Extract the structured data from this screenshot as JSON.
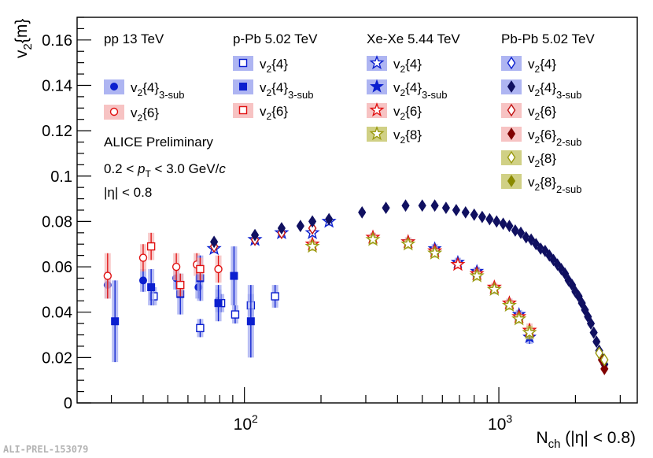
{
  "figure_id": "ALI-PREL-153079",
  "chart_data": {
    "type": "scatter",
    "title": "",
    "xlabel": {
      "main": "N",
      "sub": "ch",
      "rest": " (|η| < 0.8)"
    },
    "ylabel": {
      "main": "v",
      "sub": "2",
      "rest": "{m}"
    },
    "xscale": "log",
    "xlim": [
      22,
      3500
    ],
    "ylim": [
      0,
      0.17
    ],
    "yticks": [
      "0",
      "0.02",
      "0.04",
      "0.06",
      "0.08",
      "0.1",
      "0.12",
      "0.14",
      "0.16"
    ],
    "xticks": [
      {
        "base": "10",
        "exp": "2",
        "value": 100
      },
      {
        "base": "10",
        "exp": "3",
        "value": 1000
      }
    ],
    "annotations": [
      "ALICE Preliminary",
      "0.2 < p_T < 3.0 GeV/c",
      "|η| < 0.8"
    ],
    "legend_groups": [
      {
        "title": "pp 13 TeV",
        "entries": [
          {
            "name": "v2{4}",
            "sub": "3-sub",
            "marker": "circle",
            "filled": true,
            "color": "#0b1fcf",
            "band": "#a0a8f0"
          },
          {
            "name": "v2{6}",
            "sub": "",
            "marker": "circle",
            "filled": false,
            "color": "#e01010",
            "band": "#f6b8b8"
          }
        ]
      },
      {
        "title": "p-Pb 5.02 TeV",
        "entries": [
          {
            "name": "v2{4}",
            "sub": "",
            "marker": "square",
            "filled": false,
            "color": "#0b1fcf",
            "band": "#a0a8f0"
          },
          {
            "name": "v2{4}",
            "sub": "3-sub",
            "marker": "square",
            "filled": true,
            "color": "#0b1fcf",
            "band": "#a0a8f0"
          },
          {
            "name": "v2{6}",
            "sub": "",
            "marker": "square",
            "filled": false,
            "color": "#e01010",
            "band": "#f6b8b8"
          }
        ]
      },
      {
        "title": "Xe-Xe 5.44 TeV",
        "entries": [
          {
            "name": "v2{4}",
            "sub": "",
            "marker": "star",
            "filled": false,
            "color": "#0b1fcf",
            "band": "#a0a8f0"
          },
          {
            "name": "v2{4}",
            "sub": "3-sub",
            "marker": "star",
            "filled": true,
            "color": "#0b1fcf",
            "band": "#a0a8f0"
          },
          {
            "name": "v2{6}",
            "sub": "",
            "marker": "star",
            "filled": false,
            "color": "#e01010",
            "band": "#f6b8b8"
          },
          {
            "name": "v2{8}",
            "sub": "",
            "marker": "star",
            "filled": false,
            "color": "#9a9a10",
            "band": "#c8c870"
          }
        ]
      },
      {
        "title": "Pb-Pb 5.02 TeV",
        "entries": [
          {
            "name": "v2{4}",
            "sub": "",
            "marker": "diamond",
            "filled": false,
            "color": "#0b1fcf",
            "band": "#a0a8f0"
          },
          {
            "name": "v2{4}",
            "sub": "3-sub",
            "marker": "diamond",
            "filled": true,
            "color": "#101060",
            "band": "#a0a8f0"
          },
          {
            "name": "v2{6}",
            "sub": "",
            "marker": "diamond",
            "filled": false,
            "color": "#c01010",
            "band": "#f6b8b8"
          },
          {
            "name": "v2{6}",
            "sub": "2-sub",
            "marker": "diamond",
            "filled": true,
            "color": "#800000",
            "band": "#f6b8b8"
          },
          {
            "name": "v2{8}",
            "sub": "",
            "marker": "diamond",
            "filled": false,
            "color": "#9a9a10",
            "band": "#c8c870"
          },
          {
            "name": "v2{8}",
            "sub": "2-sub",
            "marker": "diamond",
            "filled": true,
            "color": "#8a8a00",
            "band": "#c8c870"
          }
        ]
      }
    ],
    "series": [
      {
        "name": "pp 13 TeV v2{4} 3-sub",
        "marker": "circle",
        "filled": true,
        "color": "#0b1fcf",
        "band": "#a0a8f0",
        "points": [
          [
            29,
            0.052,
            0.006
          ],
          [
            40,
            0.054,
            0.005
          ],
          [
            54,
            0.055,
            0.005
          ],
          [
            66,
            0.051,
            0.005
          ],
          [
            79,
            0.045,
            0.005
          ]
        ]
      },
      {
        "name": "pp 13 TeV v2{6}",
        "marker": "circle",
        "filled": false,
        "color": "#e01010",
        "band": "#f6b8b8",
        "points": [
          [
            29,
            0.056,
            0.01
          ],
          [
            40,
            0.064,
            0.006
          ],
          [
            54,
            0.06,
            0.006
          ],
          [
            65,
            0.061,
            0.005
          ],
          [
            79,
            0.059,
            0.006
          ]
        ]
      },
      {
        "name": "p-Pb 5.02 TeV v2{4}",
        "marker": "square",
        "filled": false,
        "color": "#0b1fcf",
        "band": "#a0a8f0",
        "points": [
          [
            44,
            0.047,
            0.004
          ],
          [
            67,
            0.033,
            0.004
          ],
          [
            81,
            0.044,
            0.004
          ],
          [
            92,
            0.039,
            0.004
          ],
          [
            106,
            0.043,
            0.005
          ],
          [
            132,
            0.047,
            0.005
          ]
        ]
      },
      {
        "name": "p-Pb 5.02 TeV v2{4} 3-sub",
        "marker": "square",
        "filled": true,
        "color": "#0b1fcf",
        "band": "#a0a8f0",
        "points": [
          [
            31,
            0.036,
            0.018
          ],
          [
            43,
            0.051,
            0.008
          ],
          [
            56,
            0.048,
            0.009
          ],
          [
            67,
            0.055,
            0.01
          ],
          [
            79,
            0.044,
            0.008
          ],
          [
            91,
            0.056,
            0.013
          ],
          [
            106,
            0.036,
            0.016
          ]
        ]
      },
      {
        "name": "p-Pb 5.02 TeV v2{6}",
        "marker": "square",
        "filled": false,
        "color": "#e01010",
        "band": "#f6b8b8",
        "points": [
          [
            43,
            0.069,
            0.006
          ],
          [
            56,
            0.052,
            0.005
          ],
          [
            67,
            0.059,
            0.005
          ]
        ]
      },
      {
        "name": "Xe-Xe 5.44 TeV v2{4}",
        "marker": "star",
        "filled": false,
        "color": "#0b1fcf",
        "band": "#a0a8f0",
        "points": [
          [
            76,
            0.068,
            0.002
          ],
          [
            110,
            0.072,
            0.002
          ],
          [
            140,
            0.075,
            0.002
          ],
          [
            185,
            0.075,
            0.002
          ],
          [
            215,
            0.08,
            0.002
          ]
        ]
      },
      {
        "name": "Xe-Xe 5.44 TeV v2{4} 3-sub",
        "marker": "star",
        "filled": true,
        "color": "#0b1fcf",
        "band": "#a0a8f0",
        "points": [
          [
            320,
            0.073,
            0.002
          ],
          [
            440,
            0.071,
            0.002
          ],
          [
            560,
            0.068,
            0.002
          ],
          [
            690,
            0.062,
            0.002
          ],
          [
            820,
            0.058,
            0.002
          ],
          [
            960,
            0.05,
            0.002
          ],
          [
            1100,
            0.044,
            0.002
          ],
          [
            1200,
            0.039,
            0.002
          ],
          [
            1320,
            0.029,
            0.003
          ]
        ]
      },
      {
        "name": "Xe-Xe 5.44 TeV v2{6}",
        "marker": "star",
        "filled": false,
        "color": "#e01010",
        "band": "#f6b8b8",
        "points": [
          [
            185,
            0.07,
            0.002
          ],
          [
            320,
            0.073,
            0.002
          ],
          [
            440,
            0.071,
            0.002
          ],
          [
            560,
            0.067,
            0.002
          ],
          [
            690,
            0.061,
            0.002
          ],
          [
            820,
            0.057,
            0.002
          ],
          [
            960,
            0.051,
            0.002
          ],
          [
            1100,
            0.044,
            0.002
          ],
          [
            1200,
            0.038,
            0.002
          ],
          [
            1320,
            0.032,
            0.003
          ]
        ]
      },
      {
        "name": "Xe-Xe 5.44 TeV v2{8}",
        "marker": "star",
        "filled": false,
        "color": "#9a9a10",
        "band": "#c8c870",
        "points": [
          [
            185,
            0.069,
            0.002
          ],
          [
            320,
            0.072,
            0.002
          ],
          [
            440,
            0.07,
            0.002
          ],
          [
            560,
            0.066,
            0.002
          ],
          [
            820,
            0.056,
            0.002
          ],
          [
            960,
            0.05,
            0.002
          ],
          [
            1100,
            0.043,
            0.002
          ],
          [
            1200,
            0.037,
            0.002
          ],
          [
            1320,
            0.031,
            0.003
          ]
        ]
      },
      {
        "name": "Pb-Pb 5.02 TeV v2{6}",
        "marker": "diamond",
        "filled": false,
        "color": "#c01010",
        "band": "#f6b8b8",
        "points": [
          [
            76,
            0.069,
            0.001
          ],
          [
            110,
            0.072,
            0.001
          ],
          [
            140,
            0.075,
            0.001
          ],
          [
            185,
            0.077,
            0.001
          ]
        ]
      },
      {
        "name": "Pb-Pb 5.02 TeV v2{4} 3-sub",
        "marker": "diamond",
        "filled": true,
        "color": "#101060",
        "band": "#a0a8f0",
        "points": [
          [
            76,
            0.071,
            0.001
          ],
          [
            110,
            0.074,
            0.001
          ],
          [
            140,
            0.077,
            0.001
          ],
          [
            166,
            0.078,
            0.001
          ],
          [
            185,
            0.08,
            0.001
          ],
          [
            215,
            0.081,
            0.001
          ],
          [
            290,
            0.084,
            0.001
          ],
          [
            360,
            0.086,
            0.001
          ],
          [
            430,
            0.087,
            0.001
          ],
          [
            500,
            0.087,
            0.001
          ],
          [
            560,
            0.087,
            0.001
          ],
          [
            620,
            0.086,
            0.001
          ],
          [
            680,
            0.085,
            0.001
          ],
          [
            740,
            0.084,
            0.001
          ],
          [
            800,
            0.083,
            0.001
          ],
          [
            860,
            0.082,
            0.001
          ],
          [
            920,
            0.081,
            0.001
          ],
          [
            980,
            0.08,
            0.001
          ],
          [
            1040,
            0.079,
            0.001
          ],
          [
            1100,
            0.078,
            0.001
          ],
          [
            1160,
            0.076,
            0.001
          ],
          [
            1220,
            0.075,
            0.001
          ],
          [
            1280,
            0.073,
            0.001
          ],
          [
            1340,
            0.072,
            0.001
          ],
          [
            1400,
            0.07,
            0.001
          ],
          [
            1460,
            0.068,
            0.001
          ],
          [
            1520,
            0.067,
            0.001
          ],
          [
            1580,
            0.065,
            0.001
          ],
          [
            1640,
            0.063,
            0.001
          ],
          [
            1700,
            0.061,
            0.001
          ],
          [
            1760,
            0.059,
            0.001
          ],
          [
            1820,
            0.057,
            0.001
          ],
          [
            1880,
            0.054,
            0.001
          ],
          [
            1940,
            0.052,
            0.001
          ],
          [
            2000,
            0.049,
            0.001
          ],
          [
            2060,
            0.047,
            0.001
          ],
          [
            2120,
            0.044,
            0.001
          ],
          [
            2180,
            0.041,
            0.001
          ],
          [
            2240,
            0.038,
            0.001
          ],
          [
            2300,
            0.035,
            0.001
          ],
          [
            2360,
            0.031,
            0.001
          ],
          [
            2420,
            0.027,
            0.001
          ],
          [
            2480,
            0.023,
            0.001
          ],
          [
            2540,
            0.02,
            0.001
          ],
          [
            2600,
            0.017,
            0.001
          ]
        ]
      },
      {
        "name": "Pb-Pb 5.02 TeV v2{6} 2-sub",
        "marker": "diamond",
        "filled": true,
        "color": "#800000",
        "band": "#f6b8b8",
        "points": [
          [
            2540,
            0.019,
            0.001
          ],
          [
            2600,
            0.015,
            0.001
          ]
        ]
      },
      {
        "name": "Pb-Pb 5.02 TeV v2{8}",
        "marker": "diamond",
        "filled": false,
        "color": "#9a9a10",
        "band": "#c8c870",
        "points": [
          [
            2480,
            0.022,
            0.001
          ],
          [
            2600,
            0.019,
            0.001
          ]
        ]
      }
    ]
  }
}
